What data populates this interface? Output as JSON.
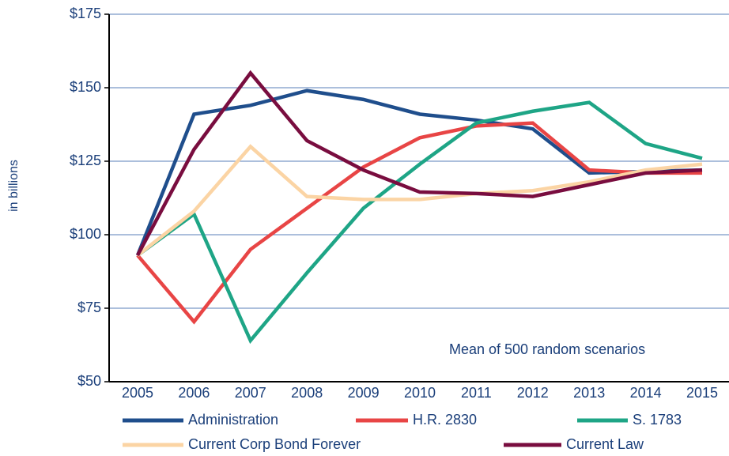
{
  "chart_data": {
    "type": "line",
    "y_label": "in billions",
    "annotation": "Mean of 500 random scenarios",
    "categories": [
      "2005",
      "2006",
      "2007",
      "2008",
      "2009",
      "2010",
      "2011",
      "2012",
      "2013",
      "2014",
      "2015"
    ],
    "series": [
      {
        "name": "Administration",
        "color": "#1f4e8c",
        "values": [
          93,
          141,
          144,
          149,
          146,
          141,
          139,
          136,
          121,
          121.5,
          122
        ]
      },
      {
        "name": "H.R. 2830",
        "color": "#e84545",
        "values": [
          93,
          70.4,
          95,
          109,
          123,
          133,
          137,
          138,
          122,
          121,
          121
        ]
      },
      {
        "name": "S. 1783",
        "color": "#1ea586",
        "values": [
          93,
          107,
          64,
          87,
          109,
          124,
          138,
          142,
          145,
          131,
          126
        ]
      },
      {
        "name": "Current Corp Bond Forever",
        "color": "#fbd4a4",
        "values": [
          93,
          108,
          130,
          113,
          112,
          112,
          114,
          115,
          118,
          122,
          124
        ]
      },
      {
        "name": "Current Law",
        "color": "#790d3f",
        "values": [
          93,
          129,
          155,
          132,
          122,
          114.5,
          114,
          113,
          117,
          121,
          122
        ]
      }
    ],
    "ylim": [
      50,
      175
    ],
    "yticks": [
      {
        "value": 50,
        "label": "$50"
      },
      {
        "value": 75,
        "label": "$75"
      },
      {
        "value": 100,
        "label": "$100"
      },
      {
        "value": 125,
        "label": "$125"
      },
      {
        "value": 150,
        "label": "$150"
      },
      {
        "value": 175,
        "label": "$175"
      }
    ],
    "grid": true
  }
}
